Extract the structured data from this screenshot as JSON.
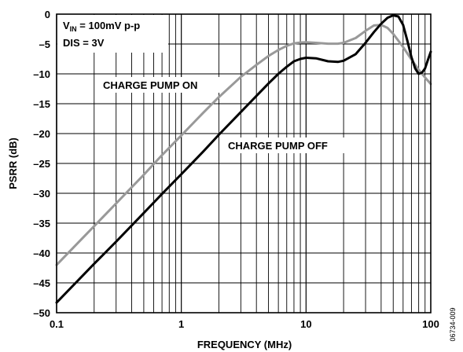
{
  "chart_data": {
    "type": "line",
    "xlabel": "FREQUENCY (MHz)",
    "ylabel": "PSRR (dB)",
    "x_scale": "log",
    "xlim": [
      0.1,
      100
    ],
    "ylim": [
      -50,
      0
    ],
    "x_ticks": [
      0.1,
      1,
      10,
      100
    ],
    "x_tick_labels": [
      "0.1",
      "1",
      "10",
      "100"
    ],
    "y_ticks": [
      0,
      -5,
      -10,
      -15,
      -20,
      -25,
      -30,
      -35,
      -40,
      -45,
      -50
    ],
    "y_tick_labels": [
      "0",
      "–5",
      "–10",
      "–15",
      "–20",
      "–25",
      "–30",
      "–35",
      "–40",
      "–45",
      "–50"
    ],
    "grid": true,
    "conditions": {
      "line1_main": "V",
      "line1_sub": "IN",
      "line1_rest": " = 100mV p-p",
      "line2": "DIS = 3V"
    },
    "series": [
      {
        "name": "CHARGE PUMP ON",
        "color": "#999999",
        "points": [
          [
            0.1,
            -42.0
          ],
          [
            0.15,
            -38.2
          ],
          [
            0.2,
            -35.5
          ],
          [
            0.3,
            -31.7
          ],
          [
            0.5,
            -26.9
          ],
          [
            0.7,
            -23.6
          ],
          [
            1,
            -20.3
          ],
          [
            1.5,
            -16.5
          ],
          [
            2,
            -13.9
          ],
          [
            3,
            -10.5
          ],
          [
            4,
            -8.5
          ],
          [
            5,
            -7.0
          ],
          [
            6,
            -6.0
          ],
          [
            7,
            -5.3
          ],
          [
            8,
            -4.9
          ],
          [
            9,
            -4.75
          ],
          [
            10,
            -4.7
          ],
          [
            12,
            -4.8
          ],
          [
            15,
            -4.95
          ],
          [
            18,
            -4.95
          ],
          [
            20,
            -4.8
          ],
          [
            25,
            -4.0
          ],
          [
            30,
            -2.8
          ],
          [
            35,
            -1.9
          ],
          [
            40,
            -1.8
          ],
          [
            45,
            -2.3
          ],
          [
            50,
            -3.3
          ],
          [
            60,
            -5.5
          ],
          [
            70,
            -7.6
          ],
          [
            80,
            -9.3
          ],
          [
            90,
            -10.6
          ],
          [
            100,
            -11.7
          ]
        ]
      },
      {
        "name": "CHARGE PUMP OFF",
        "color": "#000000",
        "points": [
          [
            0.1,
            -48.3
          ],
          [
            0.2,
            -41.8
          ],
          [
            0.3,
            -38.1
          ],
          [
            0.5,
            -33.3
          ],
          [
            0.7,
            -30.1
          ],
          [
            1,
            -26.8
          ],
          [
            1.5,
            -23.0
          ],
          [
            2,
            -20.2
          ],
          [
            3,
            -16.4
          ],
          [
            4,
            -13.7
          ],
          [
            5,
            -11.6
          ],
          [
            6,
            -10.0
          ],
          [
            7,
            -8.8
          ],
          [
            8,
            -7.9
          ],
          [
            9,
            -7.5
          ],
          [
            10,
            -7.3
          ],
          [
            12,
            -7.4
          ],
          [
            15,
            -7.9
          ],
          [
            18,
            -8.0
          ],
          [
            20,
            -7.8
          ],
          [
            25,
            -6.7
          ],
          [
            30,
            -4.8
          ],
          [
            35,
            -3.0
          ],
          [
            40,
            -1.6
          ],
          [
            45,
            -0.6
          ],
          [
            50,
            -0.2
          ],
          [
            55,
            -0.4
          ],
          [
            60,
            -1.8
          ],
          [
            65,
            -4.5
          ],
          [
            70,
            -7.2
          ],
          [
            75,
            -9.1
          ],
          [
            80,
            -10.0
          ],
          [
            85,
            -9.8
          ],
          [
            90,
            -9.1
          ],
          [
            95,
            -7.6
          ],
          [
            100,
            -6.3
          ]
        ]
      }
    ],
    "annotations": [
      "CHARGE PUMP ON",
      "CHARGE PUMP OFF"
    ],
    "figure_id": "06734-009"
  }
}
